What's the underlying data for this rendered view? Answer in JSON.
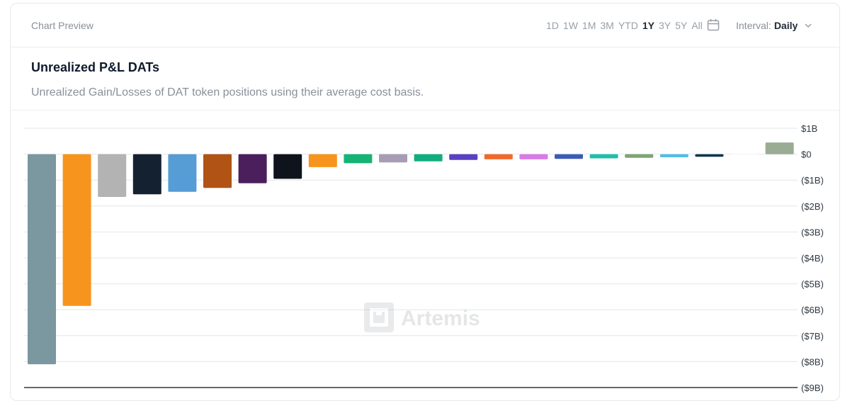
{
  "header": {
    "preview_label": "Chart Preview",
    "periods": [
      {
        "label": "1D",
        "active": false
      },
      {
        "label": "1W",
        "active": false
      },
      {
        "label": "1M",
        "active": false
      },
      {
        "label": "3M",
        "active": false
      },
      {
        "label": "YTD",
        "active": false
      },
      {
        "label": "1Y",
        "active": true
      },
      {
        "label": "3Y",
        "active": false
      },
      {
        "label": "5Y",
        "active": false
      },
      {
        "label": "All",
        "active": false
      }
    ],
    "calendar_icon": "calendar-icon",
    "interval_label": "Interval:",
    "interval_value": "Daily",
    "interval_icon": "chevron-down-icon"
  },
  "card": {
    "title": "Unrealized P&L DATs",
    "subtitle": "Unrealized Gain/Losses of DAT token positions using their average cost basis."
  },
  "watermark": {
    "text": "Artemis",
    "icon": "artemis-logo-icon"
  },
  "chart_data": {
    "type": "bar",
    "ylim": [
      -9,
      1
    ],
    "yticks": [
      1,
      0,
      -1,
      -2,
      -3,
      -4,
      -5,
      -6,
      -7,
      -8,
      -9
    ],
    "ytick_labels": [
      "$1B",
      "$0",
      "($1B)",
      "($2B)",
      "($3B)",
      "($4B)",
      "($5B)",
      "($6B)",
      "($7B)",
      "($8B)",
      "($9B)"
    ],
    "grid": true,
    "values": [
      -8.1,
      -5.85,
      -1.65,
      -1.55,
      -1.45,
      -1.3,
      -1.12,
      -0.95,
      -0.5,
      -0.35,
      -0.32,
      -0.28,
      -0.22,
      -0.2,
      -0.2,
      -0.18,
      -0.16,
      -0.14,
      -0.12,
      -0.1,
      0,
      0.45
    ],
    "colors": [
      "#7b97a0",
      "#f7941d",
      "#b3b3b3",
      "#142130",
      "#569dd6",
      "#b05315",
      "#4a1f5c",
      "#0e131c",
      "#f7941d",
      "#16b377",
      "#a69db5",
      "#12ad7e",
      "#5a3fc2",
      "#ef6a2a",
      "#d77ce6",
      "#3d5bb5",
      "#1ebfa9",
      "#7ea574",
      "#52bdeb",
      "#10354d",
      "#ffffff",
      "#9aac93"
    ]
  }
}
